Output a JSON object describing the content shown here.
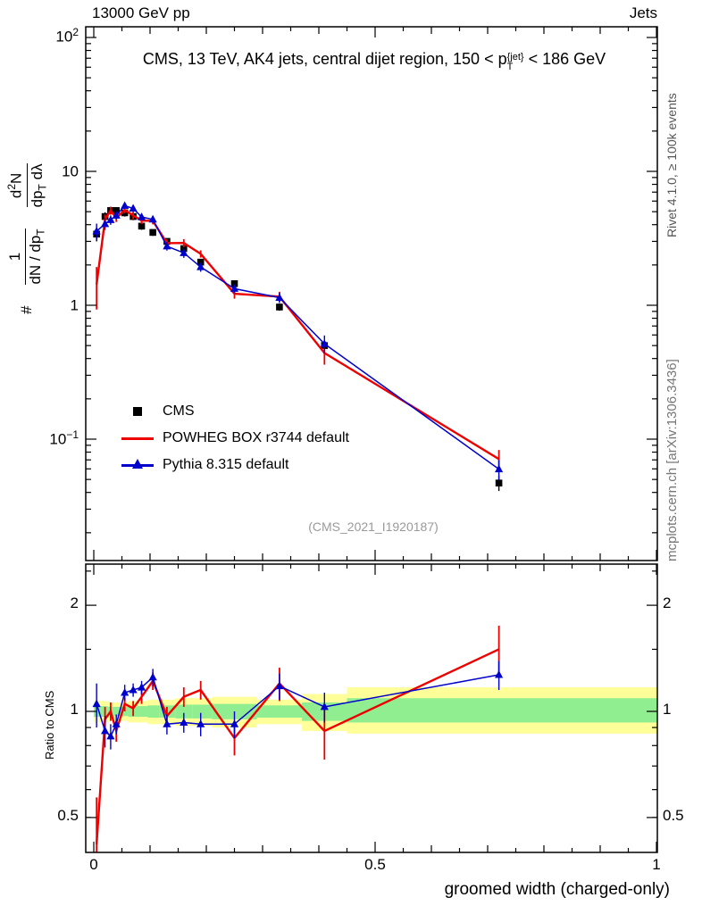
{
  "header": {
    "left": "13000 GeV pp",
    "right": "Jets"
  },
  "plot_title": {
    "prefix": "CMS, 13 TeV, AK4 jets, central dijet region, 150 < p",
    "sup": "{jet}",
    "sub": "T",
    "suffix": " < 186 GeV"
  },
  "ylabel_main": {
    "hash": "#",
    "frac1": {
      "num": "1",
      "den_main": "dN / dp",
      "den_sub": "T"
    },
    "frac2": {
      "num_main": "d",
      "num_sup": "2",
      "num_tail": "N",
      "den_a": "dp",
      "den_a_sub": "T",
      "den_b": " dλ"
    }
  },
  "ylabel_ratio": "Ratio to CMS",
  "xlabel": "groomed width (charged-only)",
  "right_margin": {
    "top_label": "Rivet 4.1.0, ≥ 100k events",
    "bottom_label": "mcplots.cern.ch [arXiv:1306.3436]"
  },
  "watermark": "(CMS_2021_I1920187)",
  "legend": {
    "items": [
      {
        "label": "CMS",
        "marker": "square",
        "color": "#000000"
      },
      {
        "label": "POWHEG BOX r3744 default",
        "marker": "line",
        "color": "#ee0000"
      },
      {
        "label": "Pythia 8.315 default",
        "marker": "triangle-line",
        "color": "#0000cc"
      }
    ]
  },
  "axis_ticks": {
    "main_y": [
      {
        "base": "10",
        "exp": "2",
        "value": 100
      },
      {
        "base": "10",
        "exp": "",
        "value": 10
      },
      {
        "base": "1",
        "exp": "",
        "value": 1
      },
      {
        "base": "10",
        "exp": "−1",
        "value": 0.1
      }
    ],
    "ratio_y": [
      {
        "label": "2",
        "value": 2
      },
      {
        "label": "1",
        "value": 1
      },
      {
        "label": "0.5",
        "value": 0.5
      }
    ],
    "x": [
      {
        "label": "0",
        "value": 0
      },
      {
        "label": "0.5",
        "value": 0.5
      },
      {
        "label": "1",
        "value": 1
      }
    ]
  },
  "chart_data": {
    "type": "line",
    "title": "CMS, 13 TeV, AK4 jets, central dijet region, 150 < pT{jet} < 186 GeV",
    "xlabel": "groomed width (charged-only)",
    "ylabel": "1/(dN/dpT) d2N/(dpT dlambda)",
    "xlim": [
      -0.0143,
      1.0016
    ],
    "panels": {
      "main": {
        "yscale": "log",
        "ylim": [
          0.0124,
          120
        ]
      },
      "ratio": {
        "yscale": "log",
        "ylim": [
          0.398,
          2.62
        ],
        "label": "Ratio to CMS"
      }
    },
    "x": [
      0.005,
      0.02,
      0.03,
      0.04,
      0.055,
      0.07,
      0.085,
      0.105,
      0.13,
      0.16,
      0.19,
      0.25,
      0.33,
      0.41,
      0.72
    ],
    "series": [
      {
        "name": "CMS",
        "color": "#000000",
        "marker": "square",
        "line": false,
        "y": [
          3.4,
          4.6,
          5.1,
          5.1,
          4.9,
          4.6,
          3.9,
          3.5,
          3.0,
          2.65,
          2.1,
          1.45,
          0.97,
          0.5,
          0.047
        ],
        "yerr": [
          0.4,
          0.35,
          0.3,
          0.3,
          0.3,
          0.28,
          0.24,
          0.2,
          0.17,
          0.15,
          0.12,
          0.08,
          0.06,
          0.05,
          0.006
        ]
      },
      {
        "name": "POWHEG BOX r3744 default",
        "color": "#ee0000",
        "marker": "none",
        "line": true,
        "y": [
          1.43,
          4.37,
          5.1,
          4.49,
          5.15,
          4.69,
          4.29,
          4.27,
          2.91,
          2.92,
          2.42,
          1.22,
          1.16,
          0.44,
          0.071
        ],
        "yerr": [
          0.5,
          0.4,
          0.35,
          0.3,
          0.3,
          0.3,
          0.25,
          0.25,
          0.2,
          0.2,
          0.15,
          0.1,
          0.1,
          0.08,
          0.012
        ],
        "ratio": [
          0.42,
          0.95,
          1.0,
          0.88,
          1.05,
          1.02,
          1.1,
          1.22,
          0.97,
          1.1,
          1.15,
          0.84,
          1.2,
          0.88,
          1.5
        ],
        "ratio_err": [
          0.15,
          0.08,
          0.06,
          0.06,
          0.05,
          0.05,
          0.05,
          0.07,
          0.06,
          0.07,
          0.07,
          0.09,
          0.13,
          0.15,
          0.25
        ]
      },
      {
        "name": "Pythia 8.315 default",
        "color": "#0000cc",
        "marker": "triangle",
        "line": true,
        "y": [
          3.57,
          4.05,
          4.34,
          4.69,
          5.54,
          5.29,
          4.56,
          4.38,
          2.76,
          2.46,
          1.93,
          1.33,
          1.14,
          0.515,
          0.0597
        ],
        "yerr": [
          0.5,
          0.4,
          0.35,
          0.3,
          0.3,
          0.3,
          0.25,
          0.25,
          0.2,
          0.2,
          0.15,
          0.1,
          0.1,
          0.08,
          0.01
        ],
        "ratio": [
          1.05,
          0.88,
          0.85,
          0.92,
          1.13,
          1.15,
          1.17,
          1.25,
          0.92,
          0.93,
          0.92,
          0.92,
          1.18,
          1.03,
          1.27
        ],
        "ratio_err": [
          0.15,
          0.09,
          0.07,
          0.06,
          0.06,
          0.05,
          0.05,
          0.07,
          0.06,
          0.06,
          0.07,
          0.08,
          0.1,
          0.1,
          0.12
        ]
      }
    ],
    "uncertainty_bands": {
      "bin_edges": [
        0,
        0.012,
        0.025,
        0.035,
        0.047,
        0.061,
        0.077,
        0.096,
        0.117,
        0.145,
        0.175,
        0.21,
        0.29,
        0.37,
        0.45,
        1.0
      ],
      "yellow": [
        [
          0.93,
          1.07
        ],
        [
          0.93,
          1.07
        ],
        [
          0.94,
          1.06
        ],
        [
          0.94,
          1.06
        ],
        [
          0.94,
          1.06
        ],
        [
          0.93,
          1.07
        ],
        [
          0.93,
          1.07
        ],
        [
          0.92,
          1.08
        ],
        [
          0.92,
          1.08
        ],
        [
          0.91,
          1.09
        ],
        [
          0.91,
          1.09
        ],
        [
          0.9,
          1.1
        ],
        [
          0.92,
          1.08
        ],
        [
          0.88,
          1.12
        ],
        [
          0.865,
          1.17
        ]
      ],
      "green": [
        [
          0.965,
          1.035
        ],
        [
          0.965,
          1.035
        ],
        [
          0.97,
          1.03
        ],
        [
          0.97,
          1.03
        ],
        [
          0.97,
          1.03
        ],
        [
          0.965,
          1.035
        ],
        [
          0.965,
          1.035
        ],
        [
          0.96,
          1.04
        ],
        [
          0.96,
          1.04
        ],
        [
          0.955,
          1.045
        ],
        [
          0.955,
          1.045
        ],
        [
          0.95,
          1.05
        ],
        [
          0.96,
          1.04
        ],
        [
          0.94,
          1.06
        ],
        [
          0.93,
          1.09
        ]
      ],
      "colors": {
        "yellow": "#ffff99",
        "green": "#90ee90"
      }
    }
  }
}
